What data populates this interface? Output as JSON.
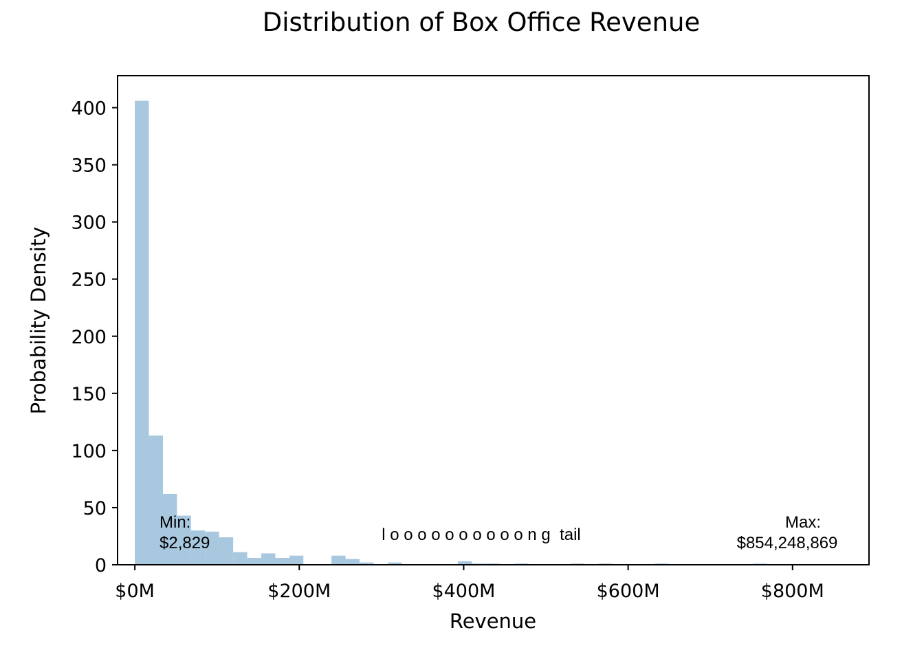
{
  "chart_data": {
    "type": "bar",
    "title": "Distribution of Box Office Revenue",
    "xlabel": "Revenue",
    "ylabel": "Probability Density",
    "xlim": [
      -21,
      893
    ],
    "ylim": [
      0,
      428
    ],
    "x_ticks": [
      {
        "value": 0,
        "label": "$0M"
      },
      {
        "value": 200,
        "label": "$200M"
      },
      {
        "value": 400,
        "label": "$400M"
      },
      {
        "value": 600,
        "label": "$600M"
      },
      {
        "value": 800,
        "label": "$800M"
      }
    ],
    "y_ticks": [
      {
        "value": 0,
        "label": "0"
      },
      {
        "value": 50,
        "label": "50"
      },
      {
        "value": 100,
        "label": "100"
      },
      {
        "value": 150,
        "label": "150"
      },
      {
        "value": 200,
        "label": "200"
      },
      {
        "value": 250,
        "label": "250"
      },
      {
        "value": 300,
        "label": "300"
      },
      {
        "value": 350,
        "label": "350"
      },
      {
        "value": 400,
        "label": "400"
      }
    ],
    "bin_edges": [
      0,
      17.1,
      34.2,
      51.3,
      68.3,
      85.4,
      102.5,
      119.6,
      136.7,
      153.8,
      170.9,
      188.0,
      205.0,
      222.1,
      239.2,
      256.3,
      273.4,
      290.5,
      307.6,
      324.7,
      341.7,
      358.8,
      375.9,
      393.0,
      410.1,
      427.2,
      444.3,
      461.4,
      478.5,
      495.5,
      512.6,
      529.7,
      546.8,
      563.9,
      581.0,
      598.1,
      615.2,
      632.3,
      649.4,
      666.5,
      683.6,
      700.7,
      717.8,
      734.9,
      752.0,
      769.1,
      786.2,
      803.3,
      820.4,
      837.5,
      854.6
    ],
    "values": [
      406,
      113,
      62,
      43,
      30,
      29,
      24,
      11,
      6,
      10,
      6,
      8,
      0,
      0,
      8,
      5,
      2,
      0,
      2,
      0,
      0,
      0,
      0,
      3,
      1,
      1,
      0,
      1,
      0,
      0,
      0,
      1,
      0,
      1,
      0,
      0,
      0,
      1,
      0,
      0,
      0,
      0,
      0,
      0,
      1,
      0,
      0,
      0,
      0,
      0,
      1
    ],
    "annotations": [
      {
        "line1": "Min:",
        "line2": "$2,829"
      },
      {
        "text": "l o o o o o o o o o o n g  tail"
      },
      {
        "line1": "Max:",
        "line2": "$854,248,869"
      }
    ],
    "colors": {
      "bar": "#a7c8df",
      "axis": "#000000"
    },
    "grid": false,
    "legend": "none"
  }
}
